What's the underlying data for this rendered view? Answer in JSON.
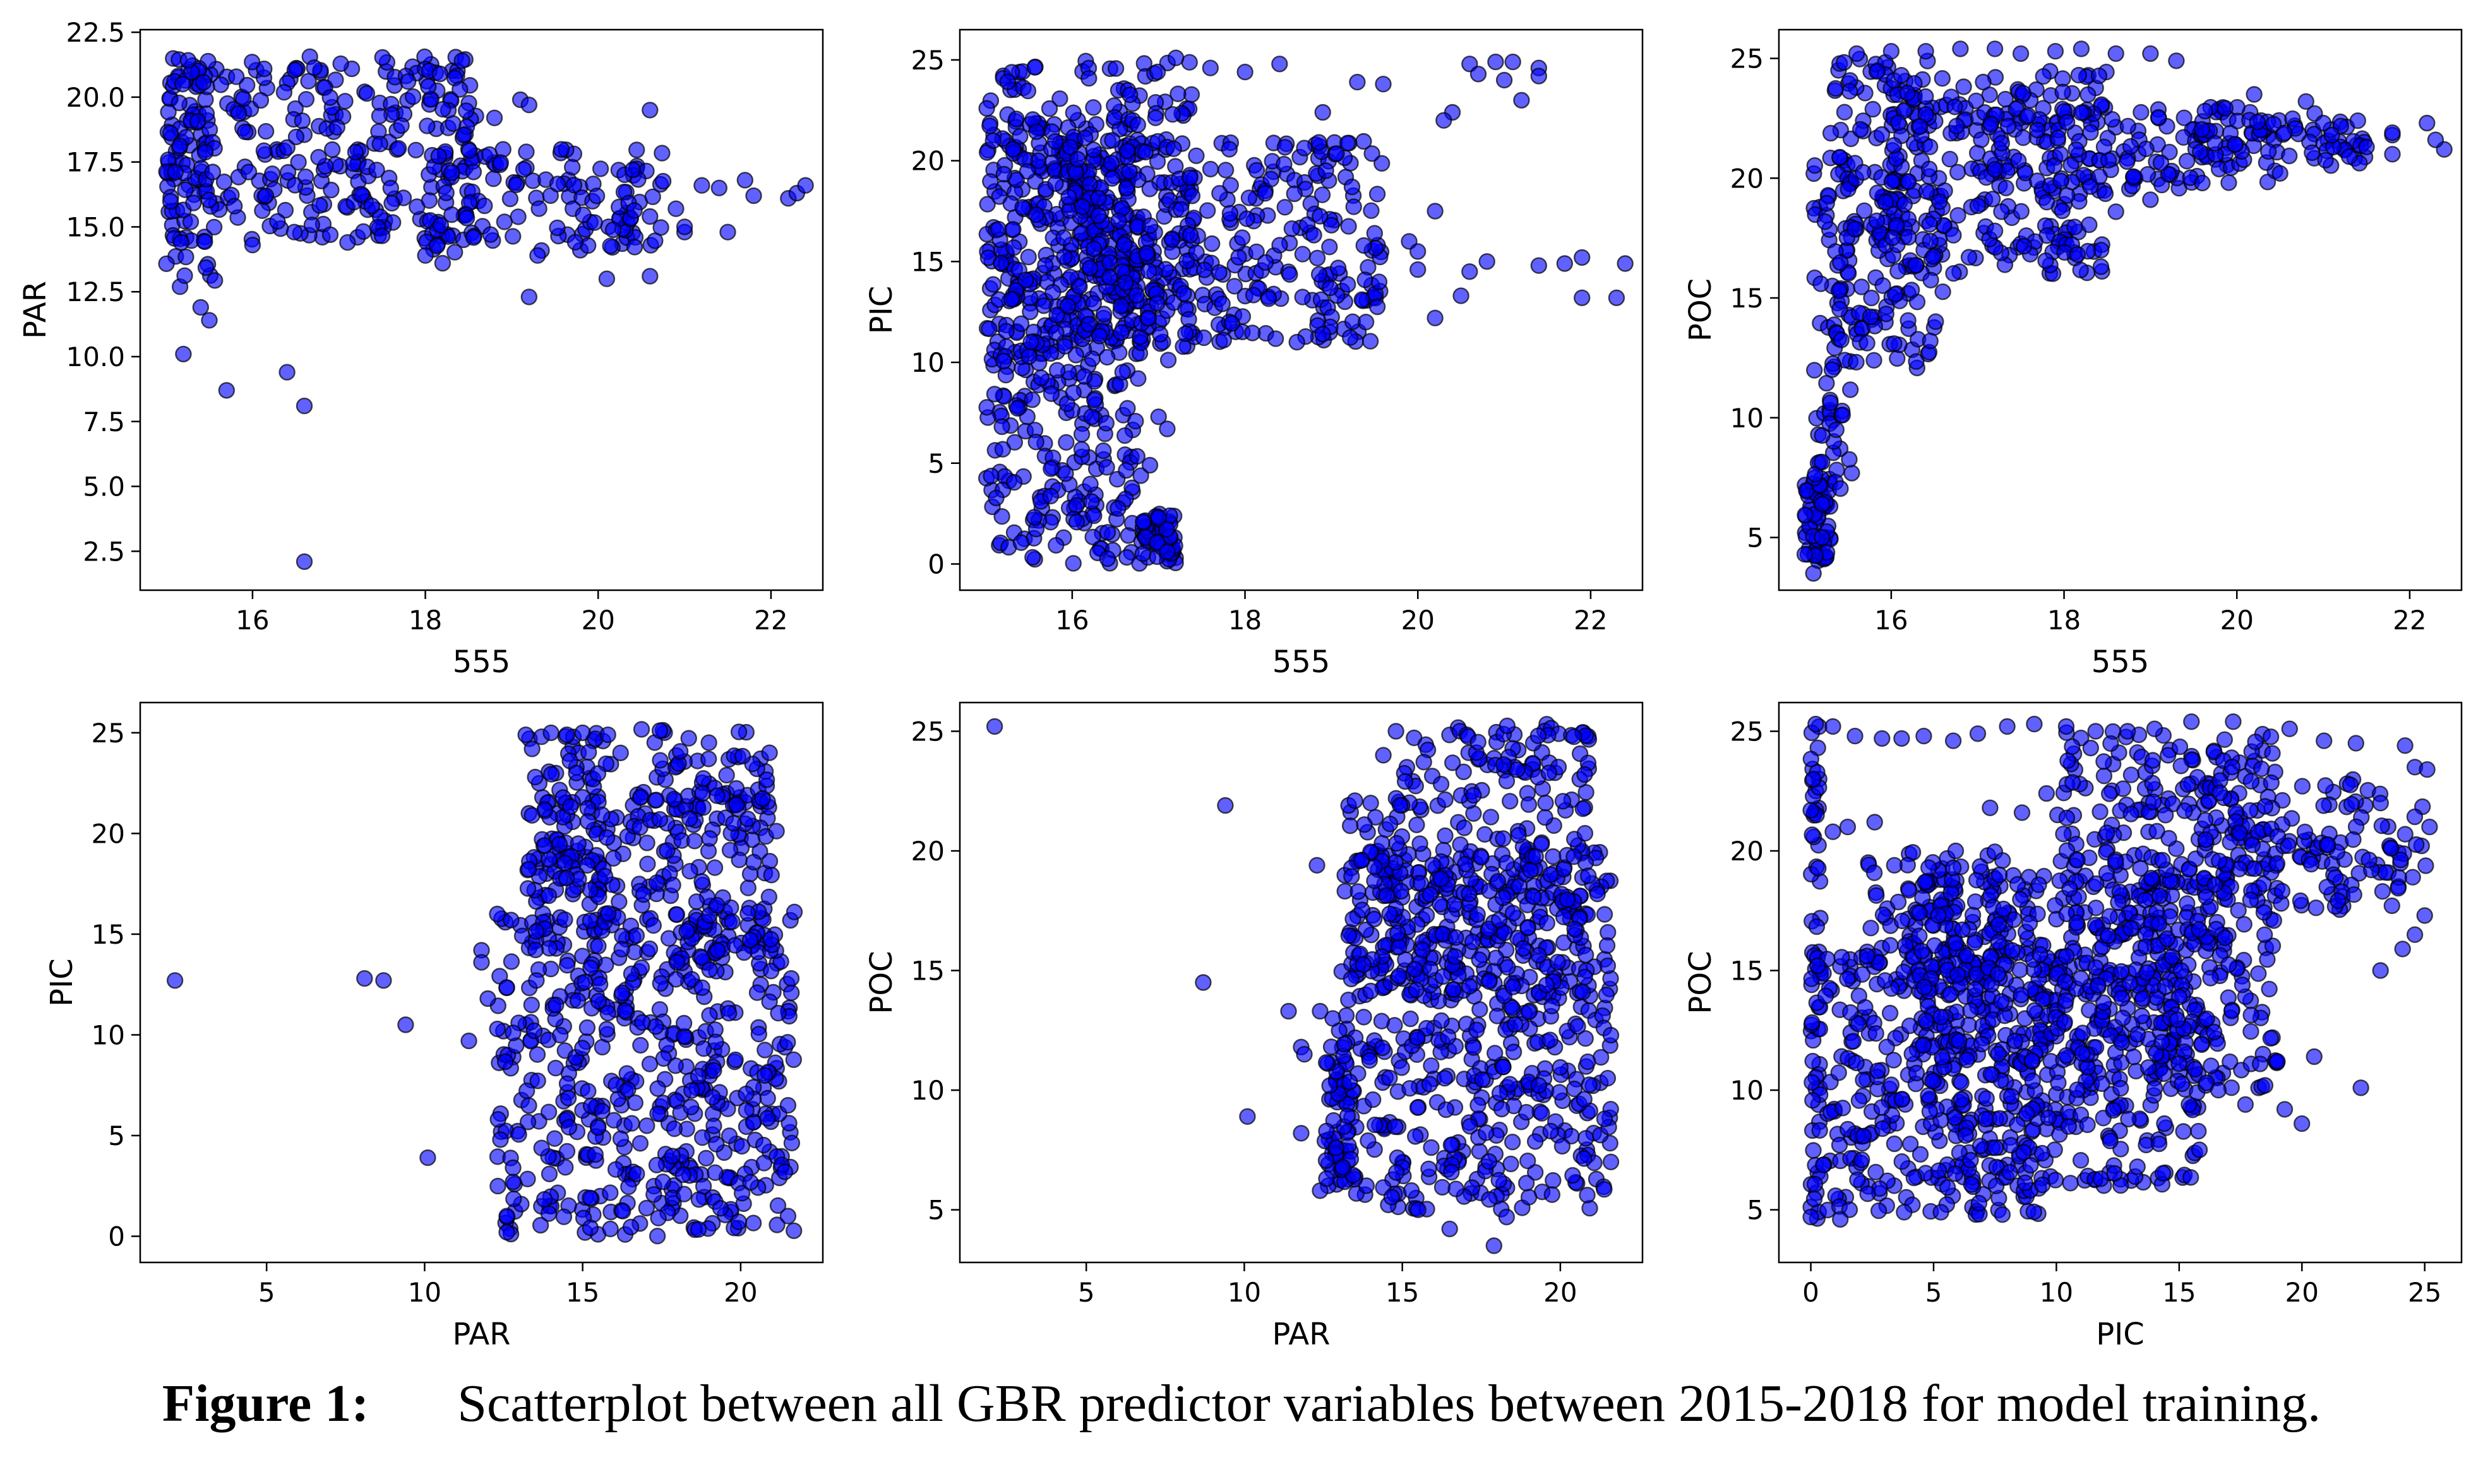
{
  "marker_fill": "#0000ff",
  "marker_edge": "#000000",
  "caption": {
    "label": "Figure 1:",
    "text": "Scatterplot between all GBR predictor variables between 2015-2018 for model training."
  },
  "chart_data": [
    {
      "type": "scatter",
      "xlabel": "555",
      "ylabel": "PAR",
      "xlim": [
        14.7,
        22.6
      ],
      "ylim": [
        1.0,
        22.6
      ],
      "xticks": [
        16,
        18,
        20,
        22
      ],
      "yticks": [
        2.5,
        5.0,
        7.5,
        10.0,
        12.5,
        15.0,
        17.5,
        20.0,
        22.5
      ],
      "grid": false,
      "dense_regions": [
        {
          "x": [
            15.0,
            18.6
          ],
          "y": [
            14.5,
            21.6
          ]
        },
        {
          "x": [
            15.0,
            15.6
          ],
          "y": [
            12.5,
            21.7
          ]
        },
        {
          "x": [
            18.0,
            20.8
          ],
          "y": [
            14.0,
            18.0
          ]
        }
      ],
      "points": [
        [
          15.2,
          10.1
        ],
        [
          15.7,
          8.7
        ],
        [
          16.4,
          9.4
        ],
        [
          16.6,
          8.1
        ],
        [
          16.6,
          2.1
        ],
        [
          15.5,
          11.4
        ],
        [
          15.4,
          11.9
        ],
        [
          20.6,
          19.5
        ],
        [
          19.2,
          12.3
        ],
        [
          18.2,
          13.6
        ],
        [
          20.1,
          13.0
        ],
        [
          20.6,
          13.1
        ],
        [
          21.0,
          14.8
        ],
        [
          21.5,
          14.8
        ],
        [
          21.4,
          16.5
        ],
        [
          21.7,
          16.8
        ],
        [
          22.2,
          16.1
        ],
        [
          22.3,
          16.3
        ],
        [
          22.4,
          16.6
        ],
        [
          21.8,
          16.2
        ],
        [
          19.1,
          19.9
        ],
        [
          19.2,
          19.7
        ],
        [
          18.8,
          19.2
        ],
        [
          19.7,
          17.3
        ],
        [
          20.4,
          17.2
        ],
        [
          20.9,
          15.7
        ],
        [
          19.3,
          13.9
        ],
        [
          18.0,
          13.9
        ],
        [
          17.1,
          14.4
        ],
        [
          16.0,
          14.3
        ],
        [
          17.8,
          20.6
        ],
        [
          18.4,
          20.3
        ],
        [
          16.9,
          14.7
        ],
        [
          20.6,
          15.4
        ],
        [
          21.0,
          15.0
        ],
        [
          21.2,
          16.6
        ]
      ]
    },
    {
      "type": "scatter",
      "xlabel": "555",
      "ylabel": "PIC",
      "xlim": [
        14.7,
        22.6
      ],
      "ylim": [
        -1.3,
        26.5
      ],
      "xticks": [
        16,
        18,
        20,
        22
      ],
      "yticks": [
        0,
        5,
        10,
        15,
        20,
        25
      ],
      "grid": false,
      "dense_regions": [
        {
          "x": [
            15.0,
            16.8
          ],
          "y": [
            0.0,
            22.0
          ]
        },
        {
          "x": [
            15.0,
            17.4
          ],
          "y": [
            10.0,
            25.0
          ]
        },
        {
          "x": [
            15.8,
            19.6
          ],
          "y": [
            11.0,
            21.0
          ]
        },
        {
          "x": [
            16.8,
            17.2
          ],
          "y": [
            0.0,
            2.5
          ]
        }
      ],
      "points": [
        [
          22.4,
          14.9
        ],
        [
          21.9,
          15.2
        ],
        [
          22.3,
          13.2
        ],
        [
          21.9,
          13.2
        ],
        [
          21.7,
          14.9
        ],
        [
          21.4,
          14.8
        ],
        [
          21.4,
          24.6
        ],
        [
          21.4,
          24.2
        ],
        [
          21.1,
          24.9
        ],
        [
          20.9,
          24.9
        ],
        [
          20.6,
          24.8
        ],
        [
          20.7,
          24.3
        ],
        [
          21.0,
          24.0
        ],
        [
          21.2,
          23.0
        ],
        [
          20.4,
          22.4
        ],
        [
          20.3,
          22.0
        ],
        [
          20.2,
          17.5
        ],
        [
          20.2,
          12.2
        ],
        [
          20.5,
          13.3
        ],
        [
          20.0,
          14.6
        ],
        [
          19.9,
          16.0
        ],
        [
          19.5,
          16.4
        ],
        [
          19.0,
          16.8
        ],
        [
          18.9,
          22.4
        ],
        [
          19.3,
          23.9
        ],
        [
          19.6,
          23.8
        ],
        [
          18.4,
          24.8
        ],
        [
          18.0,
          24.4
        ],
        [
          17.6,
          24.6
        ],
        [
          17.2,
          25.1
        ],
        [
          17.0,
          7.3
        ],
        [
          17.1,
          6.7
        ],
        [
          16.9,
          4.9
        ],
        [
          17.0,
          2.3
        ],
        [
          17.1,
          0.6
        ],
        [
          18.6,
          11.0
        ],
        [
          18.9,
          11.4
        ],
        [
          19.4,
          12.0
        ],
        [
          20.0,
          15.5
        ],
        [
          20.6,
          14.5
        ],
        [
          20.8,
          15.0
        ]
      ]
    },
    {
      "type": "scatter",
      "xlabel": "555",
      "ylabel": "POC",
      "xlim": [
        14.7,
        22.6
      ],
      "ylim": [
        2.8,
        26.2
      ],
      "xticks": [
        16,
        18,
        20,
        22
      ],
      "yticks": [
        5,
        10,
        15,
        20,
        25
      ],
      "grid": false,
      "dense_regions": [
        {
          "x": [
            15.0,
            15.3
          ],
          "y": [
            4.0,
            7.5
          ]
        },
        {
          "x": [
            15.1,
            15.6
          ],
          "y": [
            7.0,
            21.0
          ]
        },
        {
          "x": [
            15.3,
            16.6
          ],
          "y": [
            12.0,
            25.0
          ]
        },
        {
          "x": [
            15.8,
            18.5
          ],
          "y": [
            16.0,
            24.5
          ]
        },
        {
          "x": [
            17.0,
            20.5
          ],
          "y": [
            19.5,
            23.0
          ]
        },
        {
          "x": [
            19.5,
            21.5
          ],
          "y": [
            20.5,
            22.5
          ]
        }
      ],
      "points": [
        [
          15.1,
          3.5
        ],
        [
          15.0,
          4.3
        ],
        [
          15.2,
          5.0
        ],
        [
          22.4,
          21.2
        ],
        [
          22.3,
          21.6
        ],
        [
          22.2,
          22.3
        ],
        [
          21.8,
          21.8
        ],
        [
          21.8,
          21.0
        ],
        [
          21.5,
          21.3
        ],
        [
          21.4,
          22.4
        ],
        [
          20.8,
          23.2
        ],
        [
          20.9,
          22.7
        ],
        [
          21.0,
          22.3
        ],
        [
          19.3,
          24.9
        ],
        [
          19.0,
          25.2
        ],
        [
          18.6,
          25.2
        ],
        [
          18.2,
          25.4
        ],
        [
          17.9,
          25.3
        ],
        [
          17.5,
          25.2
        ],
        [
          17.2,
          25.4
        ],
        [
          16.8,
          25.4
        ],
        [
          16.4,
          25.3
        ],
        [
          16.0,
          25.3
        ],
        [
          15.6,
          25.2
        ],
        [
          19.6,
          19.8
        ],
        [
          19.0,
          19.1
        ],
        [
          18.6,
          18.6
        ],
        [
          17.8,
          19.0
        ],
        [
          17.2,
          17.8
        ],
        [
          16.9,
          16.7
        ],
        [
          20.2,
          23.5
        ],
        [
          20.5,
          20.2
        ],
        [
          21.1,
          21.8
        ],
        [
          21.3,
          20.9
        ],
        [
          21.8,
          21.9
        ]
      ]
    },
    {
      "type": "scatter",
      "xlabel": "PAR",
      "ylabel": "PIC",
      "xlim": [
        1.0,
        22.6
      ],
      "ylim": [
        -1.3,
        26.5
      ],
      "xticks": [
        5,
        10,
        15,
        20
      ],
      "yticks": [
        0,
        5,
        10,
        15,
        20,
        25
      ],
      "grid": false,
      "dense_regions": [
        {
          "x": [
            12.3,
            21.7
          ],
          "y": [
            0.0,
            16.0
          ]
        },
        {
          "x": [
            13.5,
            21.2
          ],
          "y": [
            14.0,
            22.0
          ]
        },
        {
          "x": [
            16.8,
            21.0
          ],
          "y": [
            20.0,
            25.2
          ]
        },
        {
          "x": [
            13.2,
            16.0
          ],
          "y": [
            16.5,
            25.0
          ]
        }
      ],
      "points": [
        [
          2.1,
          12.7
        ],
        [
          8.1,
          12.8
        ],
        [
          8.7,
          12.7
        ],
        [
          9.4,
          10.5
        ],
        [
          10.1,
          3.9
        ],
        [
          11.4,
          9.7
        ],
        [
          11.8,
          14.2
        ],
        [
          11.8,
          13.6
        ],
        [
          12.3,
          16.0
        ],
        [
          12.0,
          11.8
        ],
        [
          12.4,
          4.8
        ],
        [
          12.6,
          1.0
        ],
        [
          12.8,
          2.7
        ],
        [
          12.8,
          3.4
        ],
        [
          12.6,
          0.2
        ],
        [
          13.2,
          24.9
        ],
        [
          13.4,
          24.2
        ],
        [
          13.7,
          24.8
        ],
        [
          14.0,
          25.0
        ],
        [
          14.5,
          24.9
        ],
        [
          15.0,
          25.0
        ],
        [
          15.4,
          24.7
        ],
        [
          15.8,
          24.9
        ],
        [
          16.2,
          24.0
        ],
        [
          14.6,
          23.6
        ],
        [
          14.8,
          23.0
        ],
        [
          13.5,
          22.8
        ],
        [
          13.3,
          21.0
        ],
        [
          13.4,
          20.9
        ],
        [
          13.8,
          19.4
        ],
        [
          12.8,
          10.1
        ],
        [
          21.7,
          16.1
        ],
        [
          21.6,
          12.8
        ],
        [
          21.5,
          6.5
        ],
        [
          21.4,
          3.2
        ],
        [
          21.5,
          1.0
        ]
      ]
    },
    {
      "type": "scatter",
      "xlabel": "PAR",
      "ylabel": "POC",
      "xlim": [
        1.0,
        22.6
      ],
      "ylim": [
        2.8,
        26.2
      ],
      "xticks": [
        5,
        10,
        15,
        20
      ],
      "yticks": [
        5,
        10,
        15,
        20,
        25
      ],
      "grid": false,
      "dense_regions": [
        {
          "x": [
            13.0,
            21.6
          ],
          "y": [
            5.0,
            20.0
          ]
        },
        {
          "x": [
            14.8,
            21.0
          ],
          "y": [
            14.0,
            25.3
          ]
        },
        {
          "x": [
            13.3,
            15.0
          ],
          "y": [
            14.0,
            22.0
          ]
        },
        {
          "x": [
            12.5,
            13.5
          ],
          "y": [
            6.0,
            12.0
          ]
        }
      ],
      "points": [
        [
          2.1,
          25.2
        ],
        [
          8.7,
          14.5
        ],
        [
          9.4,
          21.9
        ],
        [
          10.1,
          8.9
        ],
        [
          11.4,
          13.3
        ],
        [
          11.8,
          11.8
        ],
        [
          11.9,
          11.5
        ],
        [
          12.3,
          19.4
        ],
        [
          12.4,
          13.3
        ],
        [
          12.8,
          13.0
        ],
        [
          11.8,
          8.2
        ],
        [
          12.4,
          5.8
        ],
        [
          12.6,
          6.3
        ],
        [
          13.3,
          21.9
        ],
        [
          13.5,
          22.1
        ],
        [
          14.0,
          22.0
        ],
        [
          13.8,
          21.1
        ],
        [
          13.6,
          18.3
        ],
        [
          13.7,
          19.6
        ],
        [
          14.4,
          24.0
        ],
        [
          14.8,
          25.0
        ],
        [
          15.5,
          5.0
        ],
        [
          16.5,
          4.2
        ],
        [
          17.9,
          3.5
        ],
        [
          18.3,
          4.7
        ],
        [
          21.5,
          15.2
        ],
        [
          21.6,
          12.3
        ],
        [
          21.5,
          10.5
        ],
        [
          21.4,
          8.8
        ],
        [
          21.6,
          7.0
        ]
      ]
    },
    {
      "type": "scatter",
      "xlabel": "PIC",
      "ylabel": "POC",
      "xlim": [
        -1.3,
        26.5
      ],
      "ylim": [
        2.8,
        26.2
      ],
      "xticks": [
        0,
        5,
        10,
        15,
        20,
        25
      ],
      "yticks": [
        5,
        10,
        15,
        20,
        25
      ],
      "grid": false,
      "dense_regions": [
        {
          "x": [
            0.0,
            0.4
          ],
          "y": [
            4.6,
            25.2
          ]
        },
        {
          "x": [
            0.0,
            10.0
          ],
          "y": [
            4.8,
            16.0
          ]
        },
        {
          "x": [
            4.0,
            16.0
          ],
          "y": [
            6.0,
            19.0
          ]
        },
        {
          "x": [
            10.0,
            19.0
          ],
          "y": [
            10.0,
            25.0
          ]
        },
        {
          "x": [
            16.0,
            25.2
          ],
          "y": [
            17.5,
            23.0
          ]
        },
        {
          "x": [
            2.0,
            8.0
          ],
          "y": [
            14.0,
            20.0
          ]
        }
      ],
      "points": [
        [
          22.4,
          10.1
        ],
        [
          20.0,
          8.6
        ],
        [
          19.3,
          9.2
        ],
        [
          18.5,
          10.2
        ],
        [
          17.7,
          9.4
        ],
        [
          13.3,
          6.8
        ],
        [
          15.4,
          9.4
        ],
        [
          16.6,
          10.0
        ],
        [
          18.3,
          11.1
        ],
        [
          19.0,
          11.2
        ],
        [
          20.5,
          11.4
        ],
        [
          23.2,
          15.0
        ],
        [
          24.1,
          15.9
        ],
        [
          24.6,
          16.5
        ],
        [
          25.0,
          17.3
        ],
        [
          24.6,
          23.5
        ],
        [
          24.2,
          24.4
        ],
        [
          25.1,
          23.4
        ],
        [
          25.2,
          21.0
        ],
        [
          22.2,
          24.5
        ],
        [
          20.9,
          24.6
        ],
        [
          19.5,
          25.1
        ],
        [
          17.2,
          25.4
        ],
        [
          15.5,
          25.4
        ],
        [
          14.0,
          25.1
        ],
        [
          12.9,
          25.0
        ],
        [
          11.6,
          25.0
        ],
        [
          10.4,
          25.2
        ],
        [
          9.1,
          25.3
        ],
        [
          8.0,
          25.2
        ],
        [
          6.8,
          24.9
        ],
        [
          5.8,
          24.6
        ],
        [
          4.6,
          24.8
        ],
        [
          3.7,
          24.7
        ],
        [
          2.9,
          24.7
        ],
        [
          1.8,
          24.8
        ],
        [
          0.9,
          25.2
        ],
        [
          0.2,
          25.3
        ],
        [
          0.9,
          20.8
        ],
        [
          1.5,
          21.0
        ],
        [
          2.6,
          21.2
        ],
        [
          3.4,
          19.4
        ],
        [
          4.8,
          19.3
        ],
        [
          5.9,
          20.0
        ],
        [
          7.3,
          21.8
        ],
        [
          8.6,
          21.6
        ],
        [
          9.6,
          22.4
        ],
        [
          11.4,
          24.3
        ],
        [
          3.8,
          4.9
        ],
        [
          5.3,
          4.9
        ],
        [
          7.8,
          4.8
        ],
        [
          1.2,
          4.6
        ],
        [
          0.0,
          4.7
        ],
        [
          0.0,
          21.7
        ],
        [
          0.1,
          23.0
        ]
      ]
    }
  ]
}
